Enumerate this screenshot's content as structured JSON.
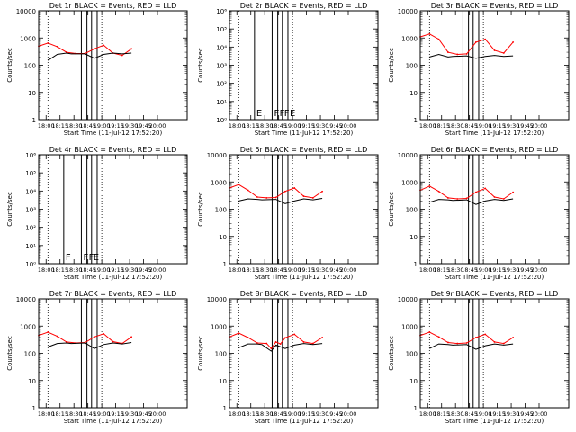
{
  "chart_data": [
    {
      "type": "line",
      "title": "Det 1r BLACK = Events, RED = LLD",
      "xlabel": "Start Time (11-Jul-12 17:52:20)",
      "ylabel": "Counts/sec",
      "yscale": "log",
      "ylim": [
        1,
        10000
      ],
      "xlim": [
        0,
        160
      ],
      "xticks": [
        8,
        23,
        38,
        53,
        68,
        83,
        98,
        113,
        128
      ],
      "xticklabels": [
        "18:00",
        "18:15",
        "18:30",
        "18:45",
        "19:00",
        "19:15",
        "19:30",
        "19:45",
        "20:00"
      ],
      "yticklabels": [
        "1",
        "10",
        "100",
        "1000",
        "10000"
      ],
      "dotted_lines": [
        10,
        68
      ],
      "solid_lines": [
        46,
        52,
        57,
        63
      ],
      "flags": [],
      "series": [
        {
          "color": "#ff0000",
          "x": [
            0,
            10,
            20,
            30,
            40,
            50,
            60,
            70,
            80,
            90,
            100
          ],
          "y": [
            500,
            650,
            480,
            300,
            270,
            270,
            400,
            540,
            280,
            230,
            400
          ]
        },
        {
          "color": "#000000",
          "x": [
            10,
            20,
            30,
            35,
            50,
            60,
            70,
            80,
            90,
            100
          ],
          "y": [
            150,
            250,
            280,
            260,
            260,
            180,
            250,
            280,
            260,
            280
          ]
        }
      ]
    },
    {
      "type": "line",
      "title": "Det 2r BLACK = Events, RED = LLD",
      "xlabel": "Start Time (11-Jul-12 17:52:20)",
      "ylabel": "Counts/sec",
      "yscale": "log",
      "ylim": [
        1,
        1000000
      ],
      "xlim": [
        0,
        160
      ],
      "xticks": [
        8,
        23,
        38,
        53,
        68,
        83,
        98,
        113,
        128
      ],
      "xticklabels": [
        "18:00",
        "18:15",
        "18:30",
        "18:45",
        "19:00",
        "19:15",
        "19:30",
        "19:45",
        "20:00"
      ],
      "yticklabels": [
        "10⁰",
        "10¹",
        "10²",
        "10³",
        "10⁴",
        "10⁵",
        "10⁶"
      ],
      "dotted_lines": [
        10,
        68
      ],
      "solid_lines": [
        27,
        46,
        52,
        57,
        63
      ],
      "flags": [
        "E",
        "F",
        "F",
        "F",
        "E"
      ],
      "series": []
    },
    {
      "type": "line",
      "title": "Det 3r BLACK = Events, RED = LLD",
      "xlabel": "Start Time (11-Jul-12 17:52:20)",
      "ylabel": "Counts/sec",
      "yscale": "log",
      "ylim": [
        1,
        10000
      ],
      "xlim": [
        0,
        160
      ],
      "xticks": [
        8,
        23,
        38,
        53,
        68,
        83,
        98,
        113,
        128
      ],
      "xticklabels": [
        "18:00",
        "18:15",
        "18:30",
        "18:45",
        "19:00",
        "19:15",
        "19:30",
        "19:45",
        "20:00"
      ],
      "yticklabels": [
        "1",
        "10",
        "100",
        "1000",
        "10000"
      ],
      "dotted_lines": [
        10,
        68
      ],
      "solid_lines": [
        46,
        52,
        57,
        63
      ],
      "flags": [],
      "series": [
        {
          "color": "#ff0000",
          "x": [
            0,
            10,
            20,
            30,
            40,
            50,
            60,
            70,
            80,
            90,
            100
          ],
          "y": [
            1100,
            1400,
            900,
            300,
            250,
            260,
            700,
            900,
            350,
            280,
            700
          ]
        },
        {
          "color": "#000000",
          "x": [
            10,
            20,
            30,
            35,
            50,
            60,
            70,
            80,
            90,
            100
          ],
          "y": [
            200,
            250,
            200,
            210,
            220,
            180,
            210,
            230,
            210,
            220
          ]
        }
      ]
    },
    {
      "type": "line",
      "title": "Det 4r BLACK = Events, RED = LLD",
      "xlabel": "Start Time (11-Jul-12 17:52:20)",
      "ylabel": "Counts/sec",
      "yscale": "log",
      "ylim": [
        1,
        1000000
      ],
      "xlim": [
        0,
        160
      ],
      "xticks": [
        8,
        23,
        38,
        53,
        68,
        83,
        98,
        113,
        128
      ],
      "xticklabels": [
        "18:00",
        "18:15",
        "18:30",
        "18:45",
        "19:00",
        "19:15",
        "19:30",
        "19:45",
        "20:00"
      ],
      "yticklabels": [
        "10⁰",
        "10¹",
        "10²",
        "10³",
        "10⁴",
        "10⁵",
        "10⁶"
      ],
      "dotted_lines": [
        10,
        68
      ],
      "solid_lines": [
        27,
        46,
        52,
        57,
        63
      ],
      "flags": [
        "F",
        "F",
        "F",
        "E"
      ],
      "series": []
    },
    {
      "type": "line",
      "title": "Det 5r BLACK = Events, RED = LLD",
      "xlabel": "Start Time (11-Jul-12 17:52:20)",
      "ylabel": "Counts/sec",
      "yscale": "log",
      "ylim": [
        1,
        10000
      ],
      "xlim": [
        0,
        160
      ],
      "xticks": [
        8,
        23,
        38,
        53,
        68,
        83,
        98,
        113,
        128
      ],
      "xticklabels": [
        "18:00",
        "18:15",
        "18:30",
        "18:45",
        "19:00",
        "19:15",
        "19:30",
        "19:45",
        "20:00"
      ],
      "yticklabels": [
        "1",
        "10",
        "100",
        "1000",
        "10000"
      ],
      "dotted_lines": [
        10,
        68
      ],
      "solid_lines": [
        46,
        52,
        57,
        63
      ],
      "flags": [],
      "series": [
        {
          "color": "#ff0000",
          "x": [
            0,
            10,
            20,
            30,
            40,
            50,
            60,
            70,
            80,
            90,
            100
          ],
          "y": [
            600,
            800,
            500,
            280,
            260,
            270,
            450,
            600,
            300,
            260,
            450
          ]
        },
        {
          "color": "#000000",
          "x": [
            10,
            20,
            30,
            35,
            50,
            60,
            70,
            80,
            90,
            100
          ],
          "y": [
            200,
            240,
            230,
            220,
            230,
            160,
            200,
            240,
            220,
            250
          ]
        }
      ]
    },
    {
      "type": "line",
      "title": "Det 6r BLACK = Events, RED = LLD",
      "xlabel": "Start Time (11-Jul-12 17:52:20)",
      "ylabel": "Counts/sec",
      "yscale": "log",
      "ylim": [
        1,
        10000
      ],
      "xlim": [
        0,
        160
      ],
      "xticks": [
        8,
        23,
        38,
        53,
        68,
        83,
        98,
        113,
        128
      ],
      "xticklabels": [
        "18:00",
        "18:15",
        "18:30",
        "18:45",
        "19:00",
        "19:15",
        "19:30",
        "19:45",
        "20:00"
      ],
      "yticklabels": [
        "1",
        "10",
        "100",
        "1000",
        "10000"
      ],
      "dotted_lines": [
        10,
        68
      ],
      "solid_lines": [
        46,
        52,
        57,
        63
      ],
      "flags": [],
      "series": [
        {
          "color": "#ff0000",
          "x": [
            0,
            10,
            20,
            30,
            40,
            50,
            60,
            70,
            80,
            90,
            100
          ],
          "y": [
            500,
            700,
            450,
            260,
            240,
            250,
            420,
            580,
            280,
            240,
            420
          ]
        },
        {
          "color": "#000000",
          "x": [
            10,
            20,
            30,
            35,
            50,
            60,
            70,
            80,
            90,
            100
          ],
          "y": [
            180,
            230,
            220,
            210,
            220,
            150,
            200,
            230,
            210,
            240
          ]
        }
      ]
    },
    {
      "type": "line",
      "title": "Det 7r BLACK = Events, RED = LLD",
      "xlabel": "Start Time (11-Jul-12 17:52:20)",
      "ylabel": "Counts/sec",
      "yscale": "log",
      "ylim": [
        1,
        10000
      ],
      "xlim": [
        0,
        160
      ],
      "xticks": [
        8,
        23,
        38,
        53,
        68,
        83,
        98,
        113,
        128
      ],
      "xticklabels": [
        "18:00",
        "18:15",
        "18:30",
        "18:45",
        "19:00",
        "19:15",
        "19:30",
        "19:45",
        "20:00"
      ],
      "yticklabels": [
        "1",
        "10",
        "100",
        "1000",
        "10000"
      ],
      "dotted_lines": [
        10,
        68
      ],
      "solid_lines": [
        46,
        52,
        57,
        63
      ],
      "flags": [],
      "series": [
        {
          "color": "#ff0000",
          "x": [
            0,
            10,
            20,
            30,
            40,
            50,
            60,
            70,
            80,
            90,
            100
          ],
          "y": [
            450,
            600,
            420,
            260,
            240,
            250,
            400,
            520,
            270,
            230,
            400
          ]
        },
        {
          "color": "#000000",
          "x": [
            10,
            20,
            30,
            35,
            50,
            60,
            70,
            80,
            90,
            100
          ],
          "y": [
            170,
            230,
            240,
            230,
            240,
            150,
            210,
            240,
            220,
            250
          ]
        }
      ]
    },
    {
      "type": "line",
      "title": "Det 8r BLACK = Events, RED = LLD",
      "xlabel": "Start Time (11-Jul-12 17:52:20)",
      "ylabel": "Counts/sec",
      "yscale": "log",
      "ylim": [
        1,
        10000
      ],
      "xlim": [
        0,
        160
      ],
      "xticks": [
        8,
        23,
        38,
        53,
        68,
        83,
        98,
        113,
        128
      ],
      "xticklabels": [
        "18:00",
        "18:15",
        "18:30",
        "18:45",
        "19:00",
        "19:15",
        "19:30",
        "19:45",
        "20:00"
      ],
      "yticklabels": [
        "1",
        "10",
        "100",
        "1000",
        "10000"
      ],
      "dotted_lines": [
        10,
        68
      ],
      "solid_lines": [
        46,
        52,
        57,
        63
      ],
      "flags": [],
      "series": [
        {
          "color": "#ff0000",
          "x": [
            0,
            10,
            20,
            30,
            40,
            45,
            50,
            55,
            60,
            70,
            80,
            90,
            100
          ],
          "y": [
            400,
            550,
            380,
            240,
            230,
            150,
            260,
            220,
            370,
            500,
            260,
            230,
            380
          ]
        },
        {
          "color": "#000000",
          "x": [
            10,
            20,
            30,
            35,
            45,
            50,
            60,
            70,
            80,
            90,
            100
          ],
          "y": [
            160,
            220,
            220,
            210,
            120,
            200,
            150,
            200,
            230,
            210,
            230
          ]
        }
      ]
    },
    {
      "type": "line",
      "title": "Det 9r BLACK = Events, RED = LLD",
      "xlabel": "Start Time (11-Jul-12 17:52:20)",
      "ylabel": "Counts/sec",
      "yscale": "log",
      "ylim": [
        1,
        10000
      ],
      "xlim": [
        0,
        160
      ],
      "xticks": [
        8,
        23,
        38,
        53,
        68,
        83,
        98,
        113,
        128
      ],
      "xticklabels": [
        "18:00",
        "18:15",
        "18:30",
        "18:45",
        "19:00",
        "19:15",
        "19:30",
        "19:45",
        "20:00"
      ],
      "yticklabels": [
        "1",
        "10",
        "100",
        "1000",
        "10000"
      ],
      "dotted_lines": [
        10,
        68
      ],
      "solid_lines": [
        46,
        52,
        57,
        63
      ],
      "flags": [],
      "series": [
        {
          "color": "#ff0000",
          "x": [
            0,
            10,
            20,
            30,
            40,
            50,
            60,
            70,
            80,
            90,
            100
          ],
          "y": [
            450,
            600,
            400,
            250,
            230,
            240,
            380,
            500,
            260,
            230,
            380
          ]
        },
        {
          "color": "#000000",
          "x": [
            10,
            20,
            30,
            35,
            50,
            60,
            70,
            80,
            90,
            100
          ],
          "y": [
            150,
            220,
            210,
            200,
            210,
            140,
            190,
            220,
            200,
            220
          ]
        }
      ]
    }
  ]
}
